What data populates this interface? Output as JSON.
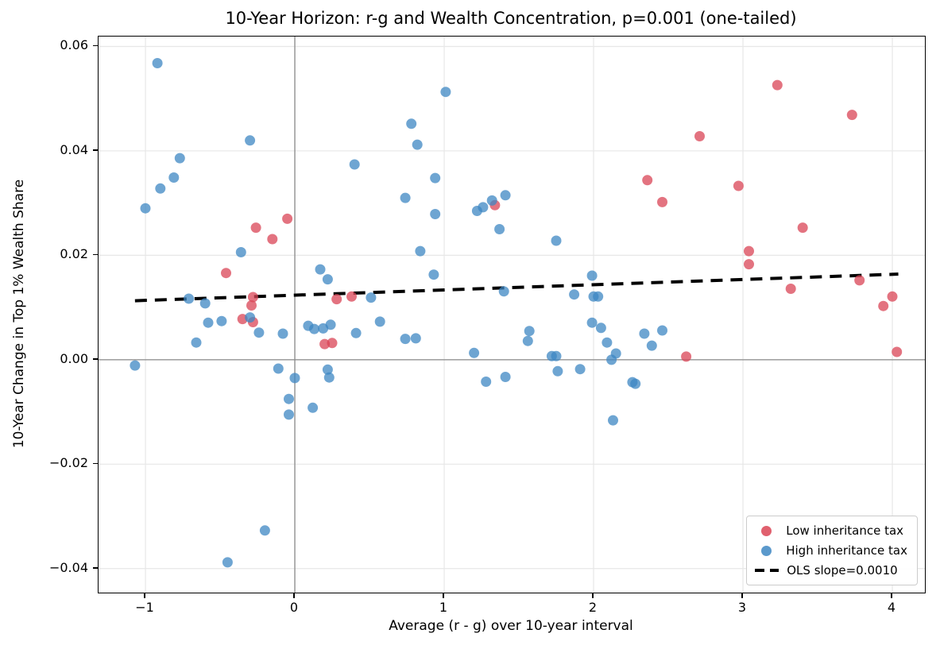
{
  "chart_data": {
    "type": "scatter",
    "title": "10-Year Horizon: r-g and Wealth Concentration, p=0.001 (one-tailed)",
    "xlabel": "Average (r - g) over 10-year interval",
    "ylabel": "10-Year Change in Top 1% Wealth Share",
    "xlim": [
      -1.314,
      4.218
    ],
    "ylim": [
      -0.0446,
      0.0619
    ],
    "grid": true,
    "legend_position": "lower right",
    "xticks": [
      {
        "value": -1,
        "label": "−1"
      },
      {
        "value": 0,
        "label": "0"
      },
      {
        "value": 1,
        "label": "1"
      },
      {
        "value": 2,
        "label": "2"
      },
      {
        "value": 3,
        "label": "3"
      },
      {
        "value": 4,
        "label": "4"
      }
    ],
    "yticks": [
      {
        "value": -0.04,
        "label": "−0.04"
      },
      {
        "value": -0.02,
        "label": "−0.02"
      },
      {
        "value": 0.0,
        "label": "0.00"
      },
      {
        "value": 0.02,
        "label": "0.02"
      },
      {
        "value": 0.04,
        "label": "0.04"
      },
      {
        "value": 0.06,
        "label": "0.06"
      }
    ],
    "zero_lines": {
      "x": 0,
      "y": 0,
      "color": "#8a8a8a"
    },
    "grid_color": "#e7e7e7",
    "marker_radius": 6.5,
    "marker_opacity": 0.75,
    "series": [
      {
        "name": "Low inheritance tax",
        "color": "#DA4455",
        "points": [
          [
            -0.46,
            0.0166
          ],
          [
            -0.35,
            0.0078
          ],
          [
            -0.29,
            0.0104
          ],
          [
            -0.28,
            0.012
          ],
          [
            -0.28,
            0.0072
          ],
          [
            -0.26,
            0.0253
          ],
          [
            -0.15,
            0.0231
          ],
          [
            -0.05,
            0.027
          ],
          [
            0.2,
            0.003
          ],
          [
            0.25,
            0.0032
          ],
          [
            0.28,
            0.0116
          ],
          [
            0.38,
            0.0121
          ],
          [
            1.34,
            0.0296
          ],
          [
            2.36,
            0.0344
          ],
          [
            2.46,
            0.0302
          ],
          [
            2.62,
            0.0006
          ],
          [
            2.71,
            0.0428
          ],
          [
            2.97,
            0.0333
          ],
          [
            3.04,
            0.0208
          ],
          [
            3.04,
            0.0183
          ],
          [
            3.23,
            0.0526
          ],
          [
            3.32,
            0.0136
          ],
          [
            3.4,
            0.0253
          ],
          [
            3.73,
            0.0469
          ],
          [
            3.78,
            0.0152
          ],
          [
            3.94,
            0.0103
          ],
          [
            4.0,
            0.0121
          ],
          [
            4.03,
            0.0015
          ]
        ]
      },
      {
        "name": "High inheritance tax",
        "color": "#3E87C3",
        "points": [
          [
            -1.07,
            -0.0011
          ],
          [
            -1.0,
            0.029
          ],
          [
            -0.92,
            0.0568
          ],
          [
            -0.9,
            0.0328
          ],
          [
            -0.81,
            0.0349
          ],
          [
            -0.77,
            0.0386
          ],
          [
            -0.71,
            0.0117
          ],
          [
            -0.66,
            0.0033
          ],
          [
            -0.6,
            0.0108
          ],
          [
            -0.58,
            0.0071
          ],
          [
            -0.49,
            0.0074
          ],
          [
            -0.45,
            -0.0388
          ],
          [
            -0.36,
            0.0206
          ],
          [
            -0.3,
            0.042
          ],
          [
            -0.3,
            0.0081
          ],
          [
            -0.24,
            0.0052
          ],
          [
            -0.2,
            -0.0327
          ],
          [
            -0.11,
            -0.0017
          ],
          [
            -0.08,
            0.005
          ],
          [
            -0.04,
            -0.0075
          ],
          [
            -0.04,
            -0.0105
          ],
          [
            0.0,
            -0.0035
          ],
          [
            0.09,
            0.0065
          ],
          [
            0.12,
            -0.0092
          ],
          [
            0.13,
            0.0059
          ],
          [
            0.17,
            0.0173
          ],
          [
            0.19,
            0.006
          ],
          [
            0.22,
            0.0154
          ],
          [
            0.22,
            -0.0019
          ],
          [
            0.23,
            -0.0034
          ],
          [
            0.24,
            0.0067
          ],
          [
            0.4,
            0.0374
          ],
          [
            0.41,
            0.0051
          ],
          [
            0.51,
            0.0119
          ],
          [
            0.57,
            0.0073
          ],
          [
            0.74,
            0.031
          ],
          [
            0.74,
            0.004
          ],
          [
            0.78,
            0.0452
          ],
          [
            0.81,
            0.0041
          ],
          [
            0.82,
            0.0412
          ],
          [
            0.84,
            0.0208
          ],
          [
            0.93,
            0.0163
          ],
          [
            0.94,
            0.0348
          ],
          [
            0.94,
            0.0279
          ],
          [
            1.01,
            0.0513
          ],
          [
            1.2,
            0.0013
          ],
          [
            1.22,
            0.0285
          ],
          [
            1.26,
            0.0292
          ],
          [
            1.28,
            -0.0042
          ],
          [
            1.32,
            0.0305
          ],
          [
            1.37,
            0.025
          ],
          [
            1.4,
            0.0131
          ],
          [
            1.41,
            0.0315
          ],
          [
            1.41,
            -0.0033
          ],
          [
            1.56,
            0.0036
          ],
          [
            1.57,
            0.0055
          ],
          [
            1.72,
            0.0007
          ],
          [
            1.75,
            0.0007
          ],
          [
            1.75,
            0.0228
          ],
          [
            1.76,
            -0.0022
          ],
          [
            1.87,
            0.0125
          ],
          [
            1.91,
            -0.0018
          ],
          [
            1.99,
            0.0161
          ],
          [
            1.99,
            0.0071
          ],
          [
            2.0,
            0.0121
          ],
          [
            2.03,
            0.0121
          ],
          [
            2.05,
            0.0061
          ],
          [
            2.09,
            0.0033
          ],
          [
            2.12,
            0.0
          ],
          [
            2.15,
            0.0012
          ],
          [
            2.13,
            -0.0116
          ],
          [
            2.26,
            -0.0043
          ],
          [
            2.28,
            -0.0046
          ],
          [
            2.34,
            0.005
          ],
          [
            2.39,
            0.0027
          ],
          [
            2.46,
            0.0056
          ]
        ]
      }
    ],
    "trend_line": {
      "name": "OLS slope=0.0010",
      "style": "dashed",
      "color": "#000000",
      "x1": -1.07,
      "y1": 0.0113,
      "x2": 4.04,
      "y2": 0.0164
    }
  },
  "legend": {
    "low_label": "Low inheritance tax",
    "high_label": "High inheritance tax",
    "ols_label": "OLS slope=0.0010"
  }
}
